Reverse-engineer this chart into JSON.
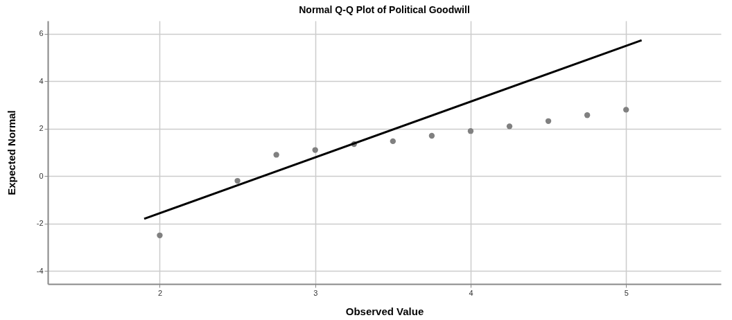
{
  "chart_data": {
    "type": "scatter",
    "title": "Normal Q-Q Plot of Political Goodwill",
    "xlabel": "Observed Value",
    "ylabel": "Expected Normal",
    "x": [
      2,
      2.5,
      2.75,
      3,
      3.25,
      3.5,
      3.75,
      4,
      4.25,
      4.5,
      4.75,
      5
    ],
    "series": [
      {
        "color": "#808080",
        "marker": "circle",
        "values": [
          -2.5,
          -0.2,
          0.9,
          1.1,
          1.35,
          1.47,
          1.7,
          1.9,
          2.1,
          2.32,
          2.57,
          2.8
        ]
      },
      {
        "type": "line",
        "color": "#000000",
        "x": [
          1.9,
          5.1
        ],
        "values": [
          -1.8,
          5.73
        ]
      }
    ],
    "xlim": [
      1.28,
      5.61
    ],
    "xticks": [
      2,
      3,
      4,
      5
    ],
    "ylim": [
      -4.55,
      6.55
    ],
    "yticks": [
      -4,
      -2,
      0,
      2,
      4,
      6
    ],
    "grid": true
  }
}
